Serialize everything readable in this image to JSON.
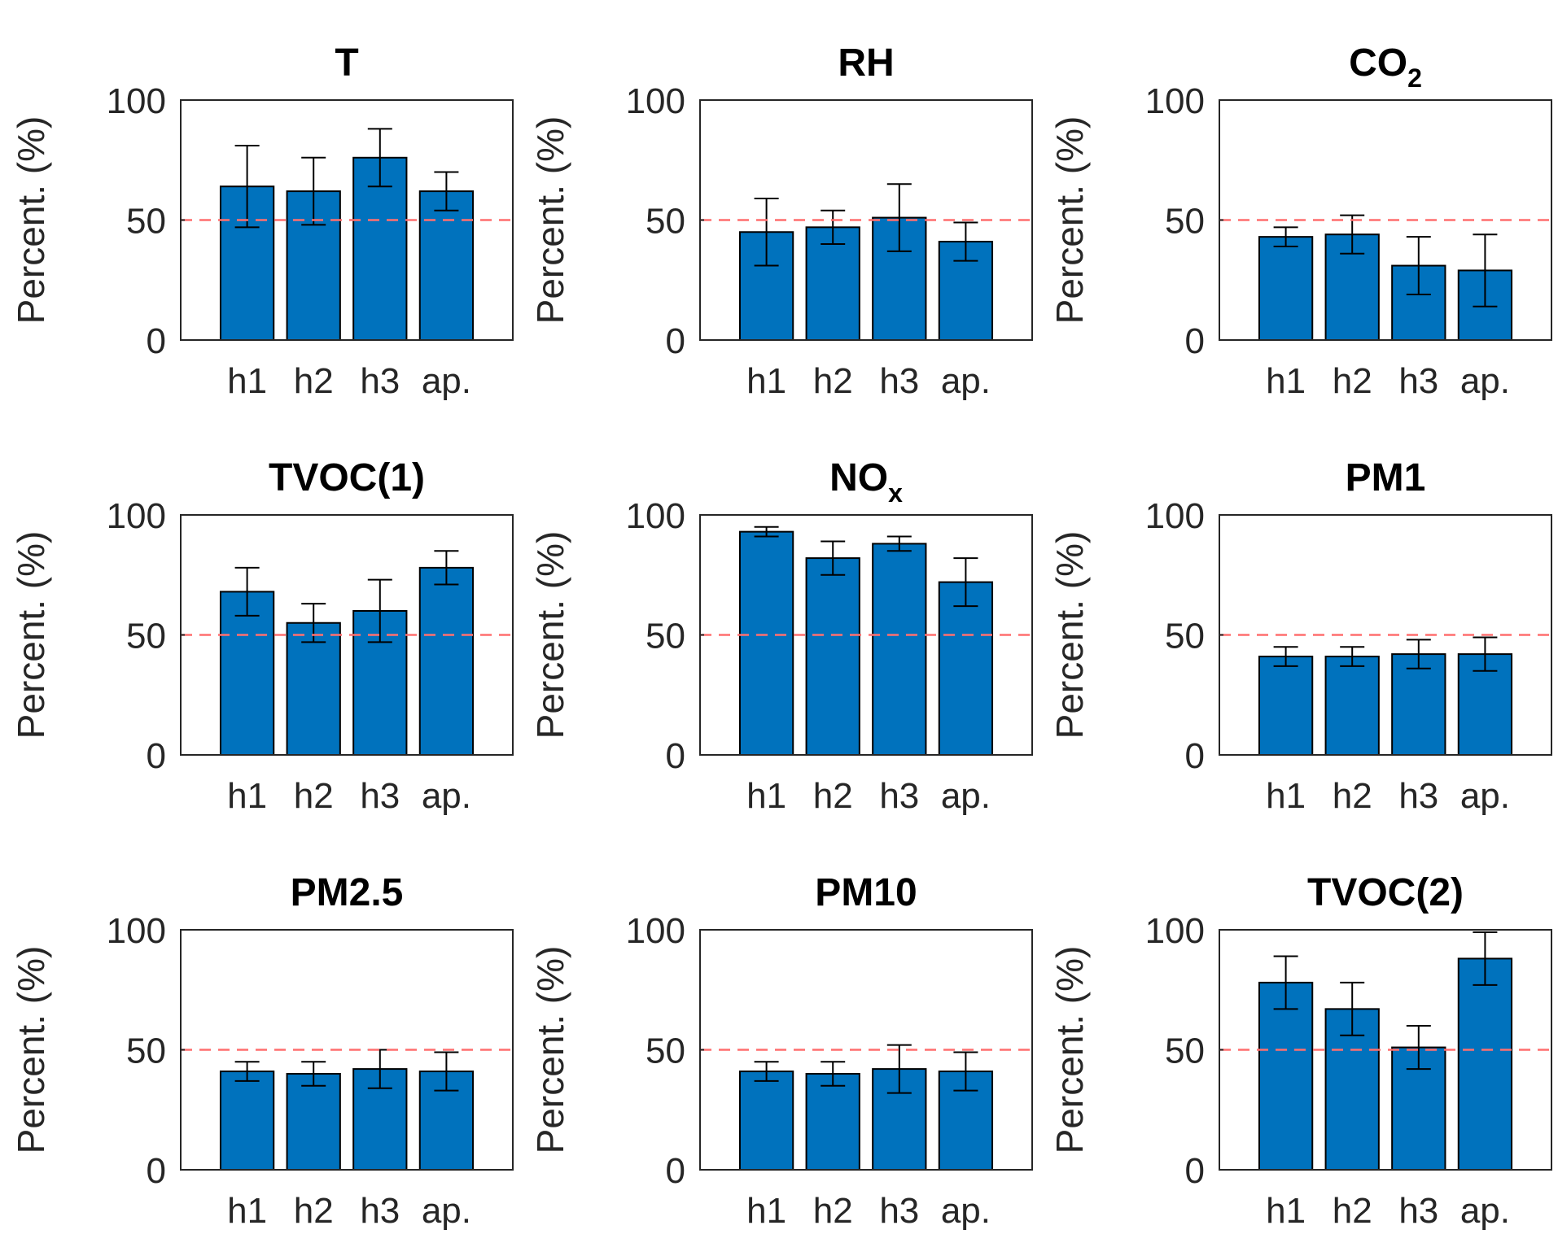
{
  "figure": {
    "colors": {
      "bar": "#0072BD",
      "reference_line": "#FF6F6F",
      "axis": "#262626"
    }
  },
  "chart_data": [
    {
      "type": "bar",
      "title": "T",
      "title_sub": "",
      "ylabel": "Percent. (%)",
      "ylim": [
        0,
        100
      ],
      "yticks": [
        "0",
        "50",
        "100"
      ],
      "categories": [
        "h1",
        "h2",
        "h3",
        "ap."
      ],
      "values": [
        64,
        62,
        76,
        62
      ],
      "errors": [
        17,
        14,
        12,
        8
      ],
      "reference_line": 50
    },
    {
      "type": "bar",
      "title": "RH",
      "title_sub": "",
      "ylabel": "Percent. (%)",
      "ylim": [
        0,
        100
      ],
      "yticks": [
        "0",
        "50",
        "100"
      ],
      "categories": [
        "h1",
        "h2",
        "h3",
        "ap."
      ],
      "values": [
        45,
        47,
        51,
        41
      ],
      "errors": [
        14,
        7,
        14,
        8
      ],
      "reference_line": 50
    },
    {
      "type": "bar",
      "title": "CO",
      "title_sub": "2",
      "ylabel": "Percent. (%)",
      "ylim": [
        0,
        100
      ],
      "yticks": [
        "0",
        "50",
        "100"
      ],
      "categories": [
        "h1",
        "h2",
        "h3",
        "ap."
      ],
      "values": [
        43,
        44,
        31,
        29
      ],
      "errors": [
        4,
        8,
        12,
        15
      ],
      "reference_line": 50
    },
    {
      "type": "bar",
      "title": "TVOC(1)",
      "title_sub": "",
      "ylabel": "Percent. (%)",
      "ylim": [
        0,
        100
      ],
      "yticks": [
        "0",
        "50",
        "100"
      ],
      "categories": [
        "h1",
        "h2",
        "h3",
        "ap."
      ],
      "values": [
        68,
        55,
        60,
        78
      ],
      "errors": [
        10,
        8,
        13,
        7
      ],
      "reference_line": 50
    },
    {
      "type": "bar",
      "title": "NO",
      "title_sub": "x",
      "ylabel": "Percent. (%)",
      "ylim": [
        0,
        100
      ],
      "yticks": [
        "0",
        "50",
        "100"
      ],
      "categories": [
        "h1",
        "h2",
        "h3",
        "ap."
      ],
      "values": [
        93,
        82,
        88,
        72
      ],
      "errors": [
        2,
        7,
        3,
        10
      ],
      "reference_line": 50
    },
    {
      "type": "bar",
      "title": "PM1",
      "title_sub": "",
      "ylabel": "Percent. (%)",
      "ylim": [
        0,
        100
      ],
      "yticks": [
        "0",
        "50",
        "100"
      ],
      "categories": [
        "h1",
        "h2",
        "h3",
        "ap."
      ],
      "values": [
        41,
        41,
        42,
        42
      ],
      "errors": [
        4,
        4,
        6,
        7
      ],
      "reference_line": 50
    },
    {
      "type": "bar",
      "title": "PM2.5",
      "title_sub": "",
      "ylabel": "Percent. (%)",
      "ylim": [
        0,
        100
      ],
      "yticks": [
        "0",
        "50",
        "100"
      ],
      "categories": [
        "h1",
        "h2",
        "h3",
        "ap."
      ],
      "values": [
        41,
        40,
        42,
        41
      ],
      "errors": [
        4,
        5,
        8,
        8
      ],
      "reference_line": 50
    },
    {
      "type": "bar",
      "title": "PM10",
      "title_sub": "",
      "ylabel": "Percent. (%)",
      "ylim": [
        0,
        100
      ],
      "yticks": [
        "0",
        "50",
        "100"
      ],
      "categories": [
        "h1",
        "h2",
        "h3",
        "ap."
      ],
      "values": [
        41,
        40,
        42,
        41
      ],
      "errors": [
        4,
        5,
        10,
        8
      ],
      "reference_line": 50
    },
    {
      "type": "bar",
      "title": "TVOC(2)",
      "title_sub": "",
      "ylabel": "Percent. (%)",
      "ylim": [
        0,
        100
      ],
      "yticks": [
        "0",
        "50",
        "100"
      ],
      "categories": [
        "h1",
        "h2",
        "h3",
        "ap."
      ],
      "values": [
        78,
        67,
        51,
        88
      ],
      "errors": [
        11,
        11,
        9,
        11
      ],
      "reference_line": 50
    }
  ]
}
